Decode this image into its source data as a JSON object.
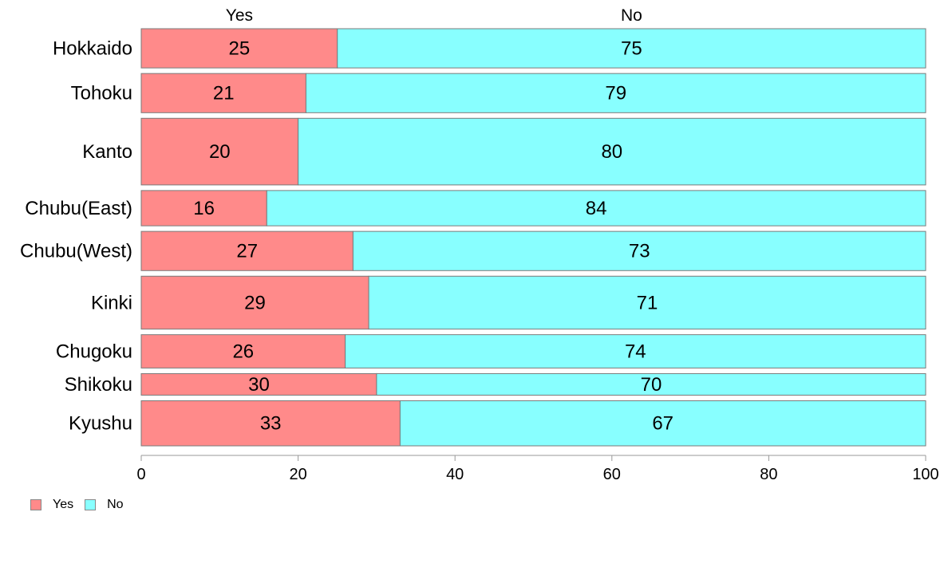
{
  "chart_data": {
    "type": "bar",
    "orientation": "horizontal",
    "stacked": true,
    "categories": [
      "Hokkaido",
      "Tohoku",
      "Kanto",
      "Chubu(East)",
      "Chubu(West)",
      "Kinki",
      "Chugoku",
      "Shikoku",
      "Kyushu"
    ],
    "series": [
      {
        "name": "Yes",
        "color": "#FF8A8A",
        "values": [
          25,
          21,
          20,
          16,
          27,
          29,
          26,
          30,
          33
        ]
      },
      {
        "name": "No",
        "color": "#88FFFF",
        "values": [
          75,
          79,
          80,
          84,
          73,
          71,
          74,
          70,
          67
        ]
      }
    ],
    "relative_bar_widths": [
      1.0,
      1.0,
      1.7,
      0.9,
      1.0,
      1.35,
      0.85,
      0.55,
      1.15
    ],
    "xlim": [
      0,
      100
    ],
    "xticks": [
      0,
      20,
      40,
      60,
      80,
      100
    ],
    "top_labels": [
      "Yes",
      "No"
    ],
    "legend": {
      "position": "bottom-left",
      "entries": [
        "Yes",
        "No"
      ]
    },
    "grid": false
  }
}
